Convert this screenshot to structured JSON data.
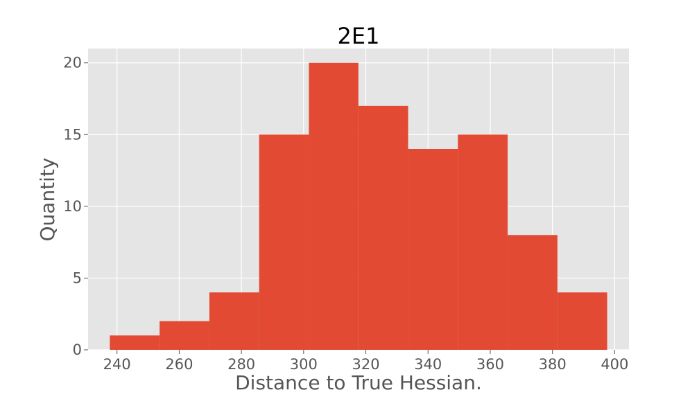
{
  "chart_data": {
    "type": "bar",
    "title": "2E1",
    "xlabel": "Distance to True Hessian.",
    "ylabel": "Quantity",
    "bin_edges": [
      237.7,
      253.7,
      269.7,
      285.7,
      301.7,
      317.6,
      333.6,
      349.6,
      365.6,
      381.6,
      397.6
    ],
    "values": [
      1,
      2,
      4,
      15,
      20,
      17,
      14,
      15,
      8,
      4
    ],
    "xlim": [
      230.7,
      404.6
    ],
    "ylim": [
      0,
      21
    ],
    "xticks": [
      240,
      260,
      280,
      300,
      320,
      340,
      360,
      380,
      400
    ],
    "yticks": [
      0,
      5,
      10,
      15,
      20
    ],
    "grid": true,
    "colors": {
      "bar": "#E24A33",
      "plot_background": "#E5E5E5",
      "grid": "#FFFFFF",
      "text": "#555555",
      "title": "#000000"
    }
  }
}
